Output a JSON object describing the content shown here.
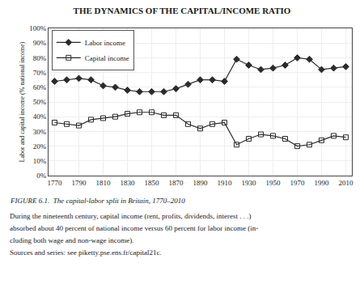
{
  "chart_data": {
    "type": "line",
    "title": "THE DYNAMICS OF THE CAPITAL/INCOME RATIO",
    "ylabel": "Labor and capital income (% national income)",
    "annotations": [
      "FIGURE 6.1.  The capital-labor split in Britain, 1770–2010",
      "During the nineteenth century, capital income (rent, profits, dividends, interest . . .)",
      "absorbed about 40 percent of national income versus 60 percent for labor income (in-",
      "cluding both wage and non-wage income).",
      "Sources and series: see piketty.pse.ens.fr/capital21c."
    ],
    "x": [
      1770,
      1780,
      1790,
      1800,
      1810,
      1820,
      1830,
      1840,
      1850,
      1860,
      1870,
      1880,
      1890,
      1900,
      1910,
      1920,
      1930,
      1940,
      1950,
      1960,
      1970,
      1980,
      1990,
      2000,
      2010
    ],
    "series": [
      {
        "name": "Labor income",
        "color": "#2b2b2b",
        "marker": "diamond",
        "values": [
          0.64,
          0.65,
          0.66,
          0.65,
          0.61,
          0.6,
          0.58,
          0.57,
          0.57,
          0.57,
          0.59,
          0.62,
          0.65,
          0.65,
          0.64,
          0.79,
          0.75,
          0.72,
          0.73,
          0.75,
          0.8,
          0.79,
          0.72,
          0.73,
          0.74
        ]
      },
      {
        "name": "Capital income",
        "color": "#2b2b2b",
        "marker": "square-open",
        "values": [
          0.36,
          0.35,
          0.34,
          0.38,
          0.39,
          0.4,
          0.42,
          0.43,
          0.43,
          0.41,
          0.41,
          0.35,
          0.32,
          0.35,
          0.36,
          0.21,
          0.25,
          0.28,
          0.27,
          0.25,
          0.2,
          0.21,
          0.24,
          0.27,
          0.26
        ]
      }
    ],
    "xlim": [
      1765,
      2015
    ],
    "xticks": [
      1770,
      1790,
      1810,
      1830,
      1850,
      1870,
      1890,
      1910,
      1930,
      1950,
      1970,
      1990,
      2010
    ],
    "ylim": [
      0.0,
      1.0
    ],
    "yticks": [
      {
        "value": 0.0,
        "label": "0%"
      },
      {
        "value": 0.1,
        "label": "10%"
      },
      {
        "value": 0.2,
        "label": "20%"
      },
      {
        "value": 0.3,
        "label": "30%"
      },
      {
        "value": 0.4,
        "label": "40%"
      },
      {
        "value": 0.5,
        "label": "50%"
      },
      {
        "value": 0.6,
        "label": "60%"
      },
      {
        "value": 0.7,
        "label": "70%"
      },
      {
        "value": 0.8,
        "label": "80%"
      },
      {
        "value": 0.9,
        "label": "90%"
      },
      {
        "value": 1.0,
        "label": "100%"
      }
    ],
    "grid": true,
    "legend": "upper left"
  }
}
